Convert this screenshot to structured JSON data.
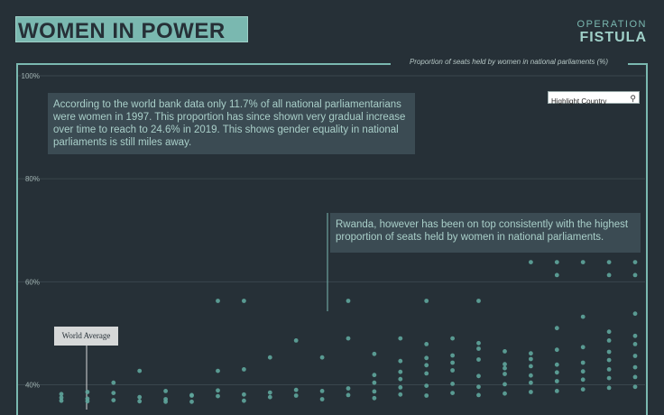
{
  "header": {
    "title": "WOMEN IN POWER",
    "logo_line1": "OPERATION",
    "logo_line2": "FISTULA"
  },
  "search": {
    "placeholder": "Highlight Country",
    "icon": "search-icon"
  },
  "annotations": {
    "world_bank": "According to the world bank data only 11.7% of all national parliamentarians were women in 1997. This proportion has since shown very gradual increase over time to reach to 24.6% in 2019. This shows gender equality in national parliaments is still miles away.",
    "rwanda": "Rwanda, however has been on top consistently with the highest proportion of seats held by women in national parliaments.",
    "world_average": "World Average"
  },
  "colors": {
    "background": "#263037",
    "accent": "#7ab8b0",
    "dot": "#5fa69c",
    "grid": "#3a464d"
  },
  "chart_data": {
    "type": "scatter",
    "title": "Proportion of seats held by women in national parliaments (%)",
    "yticks": [
      "100%",
      "80%",
      "60%",
      "40%"
    ],
    "ytick_values": [
      100,
      80,
      60,
      40
    ],
    "ylim": [
      35,
      100
    ],
    "x_range": [
      1997,
      2019
    ],
    "grid": true,
    "points": [
      [
        1997,
        36.9
      ],
      [
        1998,
        37.3
      ],
      [
        1999,
        40.4
      ],
      [
        2000,
        42.7
      ],
      [
        2001,
        36.7
      ],
      [
        2002,
        37.9
      ],
      [
        2003,
        42.7
      ],
      [
        2004,
        43.0
      ],
      [
        2005,
        45.3
      ],
      [
        2006,
        48.6
      ],
      [
        2007,
        45.3
      ],
      [
        2008,
        49.0
      ],
      [
        2009,
        46.0
      ],
      [
        2010,
        49.0
      ],
      [
        2011,
        47.9
      ],
      [
        2012,
        49.0
      ],
      [
        2013,
        48.1
      ],
      [
        2014,
        44.0
      ],
      [
        2015,
        41.8
      ],
      [
        2016,
        51.0
      ],
      [
        2017,
        53.2
      ],
      [
        2018,
        50.3
      ],
      [
        2019,
        53.8
      ],
      [
        2003,
        56.3
      ],
      [
        2004,
        56.3
      ],
      [
        2008,
        56.3
      ],
      [
        2011,
        56.3
      ],
      [
        2013,
        56.3
      ],
      [
        2015,
        63.8
      ],
      [
        2016,
        63.8
      ],
      [
        2017,
        63.8
      ],
      [
        2018,
        63.8
      ],
      [
        2019,
        63.8
      ],
      [
        2016,
        61.3
      ],
      [
        2018,
        61.3
      ],
      [
        2019,
        61.3
      ],
      [
        1997,
        37.5
      ],
      [
        1997,
        38.2
      ],
      [
        1998,
        36.8
      ],
      [
        1998,
        38.6
      ],
      [
        1999,
        37.0
      ],
      [
        1999,
        38.4
      ],
      [
        2000,
        36.8
      ],
      [
        2000,
        37.6
      ],
      [
        2001,
        37.2
      ],
      [
        2001,
        38.8
      ],
      [
        2002,
        36.7
      ],
      [
        2002,
        38.0
      ],
      [
        2003,
        37.8
      ],
      [
        2003,
        38.9
      ],
      [
        2004,
        36.9
      ],
      [
        2004,
        38.1
      ],
      [
        2005,
        37.6
      ],
      [
        2005,
        38.5
      ],
      [
        2006,
        37.9
      ],
      [
        2006,
        39.0
      ],
      [
        2007,
        37.2
      ],
      [
        2007,
        38.8
      ],
      [
        2008,
        38.0
      ],
      [
        2008,
        39.3
      ],
      [
        2009,
        37.4
      ],
      [
        2009,
        38.7
      ],
      [
        2010,
        38.1
      ],
      [
        2010,
        39.5
      ],
      [
        2011,
        37.9
      ],
      [
        2011,
        39.8
      ],
      [
        2012,
        38.4
      ],
      [
        2012,
        40.2
      ],
      [
        2013,
        38.0
      ],
      [
        2013,
        39.6
      ],
      [
        2014,
        38.3
      ],
      [
        2014,
        40.1
      ],
      [
        2015,
        38.6
      ],
      [
        2015,
        40.4
      ],
      [
        2016,
        38.8
      ],
      [
        2016,
        40.7
      ],
      [
        2017,
        39.1
      ],
      [
        2017,
        41.0
      ],
      [
        2018,
        39.4
      ],
      [
        2018,
        41.3
      ],
      [
        2019,
        39.6
      ],
      [
        2019,
        41.5
      ],
      [
        2009,
        40.4
      ],
      [
        2009,
        41.9
      ],
      [
        2010,
        42.5
      ],
      [
        2010,
        41.1
      ],
      [
        2011,
        43.8
      ],
      [
        2011,
        42.2
      ],
      [
        2012,
        42.8
      ],
      [
        2012,
        44.3
      ],
      [
        2013,
        41.7
      ],
      [
        2013,
        44.9
      ],
      [
        2014,
        43.2
      ],
      [
        2014,
        42.1
      ],
      [
        2015,
        43.6
      ],
      [
        2015,
        45.0
      ],
      [
        2016,
        43.9
      ],
      [
        2016,
        42.4
      ],
      [
        2017,
        44.3
      ],
      [
        2017,
        42.6
      ],
      [
        2018,
        44.8
      ],
      [
        2018,
        43.0
      ],
      [
        2019,
        45.6
      ],
      [
        2019,
        43.4
      ],
      [
        2015,
        46.1
      ],
      [
        2016,
        46.8
      ],
      [
        2017,
        47.3
      ],
      [
        2018,
        46.4
      ],
      [
        2019,
        47.9
      ],
      [
        2019,
        49.5
      ],
      [
        2018,
        48.6
      ],
      [
        2014,
        46.5
      ],
      [
        2013,
        47.0
      ],
      [
        2012,
        45.7
      ],
      [
        2011,
        45.2
      ],
      [
        2010,
        44.6
      ]
    ],
    "world_average_x": 1997
  }
}
